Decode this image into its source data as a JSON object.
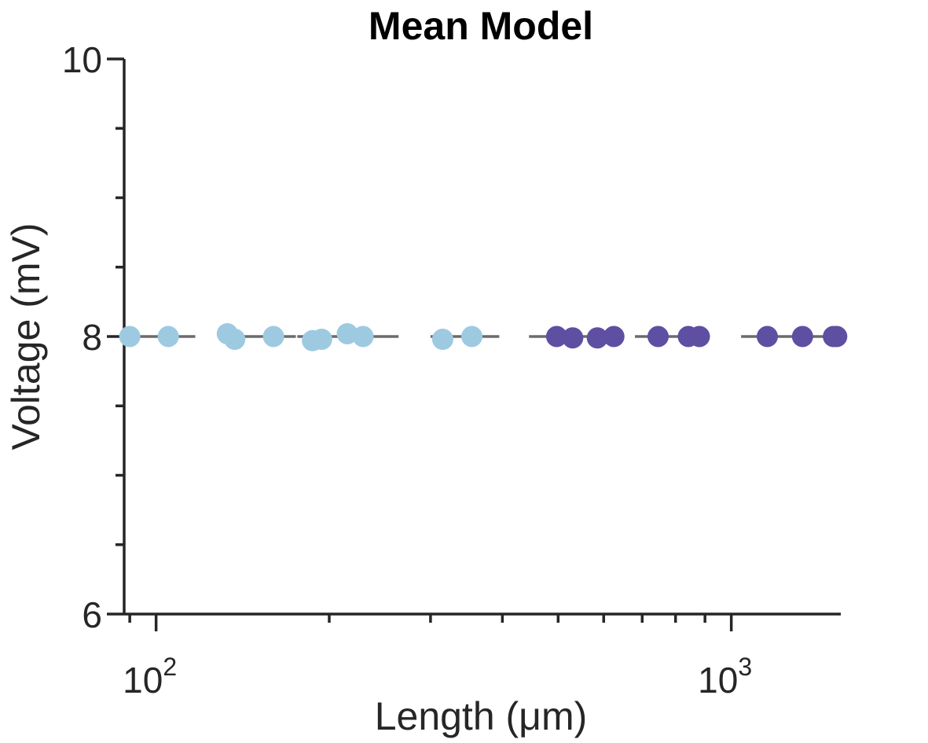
{
  "chart_data": {
    "type": "scatter",
    "title": "Mean Model",
    "xlabel": "Length (μm)",
    "ylabel": "Voltage (mV)",
    "xscale": "log",
    "xlim": [
      88,
      1550
    ],
    "ylim": [
      6,
      10
    ],
    "yticks": [
      6,
      8,
      10
    ],
    "yticks_minor": [
      6.5,
      7,
      7.5,
      8.5,
      9,
      9.5
    ],
    "xticks_major": [
      {
        "value": 100,
        "base": "10",
        "exp": "2"
      },
      {
        "value": 1000,
        "base": "10",
        "exp": "3"
      }
    ],
    "xticks_minor": [
      90,
      200,
      300,
      400,
      500,
      600,
      700,
      800,
      900
    ],
    "grid": false,
    "groups": [
      {
        "color": "#9ecae1",
        "line_x": [
          90,
          117
        ],
        "line_y": 8.0
      },
      {
        "color": "#9ecae1",
        "line_x": [
          135,
          175
        ],
        "line_y": 8.0
      },
      {
        "color": "#9ecae1",
        "line_x": [
          176,
          264
        ],
        "line_y": 8.0
      },
      {
        "color": "#9ecae1",
        "line_x": [
          300,
          395
        ],
        "line_y": 8.0
      },
      {
        "color": "#5e4fa2",
        "line_x": [
          445,
          590
        ],
        "line_y": 8.0
      },
      {
        "color": "#5e4fa2",
        "line_x": [
          680,
          905
        ],
        "line_y": 8.0
      },
      {
        "color": "#5e4fa2",
        "line_x": [
          1040,
          1510
        ],
        "line_y": 8.0
      }
    ],
    "series": [
      {
        "color": "#9ecae1",
        "points": [
          {
            "x": 90,
            "y": 8.0
          },
          {
            "x": 105,
            "y": 8.0
          },
          {
            "x": 133,
            "y": 8.02
          },
          {
            "x": 137,
            "y": 7.98
          },
          {
            "x": 160,
            "y": 8.0
          },
          {
            "x": 187,
            "y": 7.97
          },
          {
            "x": 194,
            "y": 7.98
          },
          {
            "x": 215,
            "y": 8.02
          },
          {
            "x": 229,
            "y": 8.0
          },
          {
            "x": 315,
            "y": 7.98
          },
          {
            "x": 354,
            "y": 8.0
          }
        ]
      },
      {
        "color": "#5e4fa2",
        "points": [
          {
            "x": 497,
            "y": 8.0
          },
          {
            "x": 530,
            "y": 7.99
          },
          {
            "x": 585,
            "y": 7.99
          },
          {
            "x": 625,
            "y": 8.0
          },
          {
            "x": 746,
            "y": 8.0
          },
          {
            "x": 842,
            "y": 8.0
          },
          {
            "x": 880,
            "y": 8.0
          },
          {
            "x": 1155,
            "y": 8.0
          },
          {
            "x": 1330,
            "y": 8.0
          },
          {
            "x": 1505,
            "y": 8.0
          },
          {
            "x": 1525,
            "y": 8.0
          }
        ]
      }
    ]
  }
}
